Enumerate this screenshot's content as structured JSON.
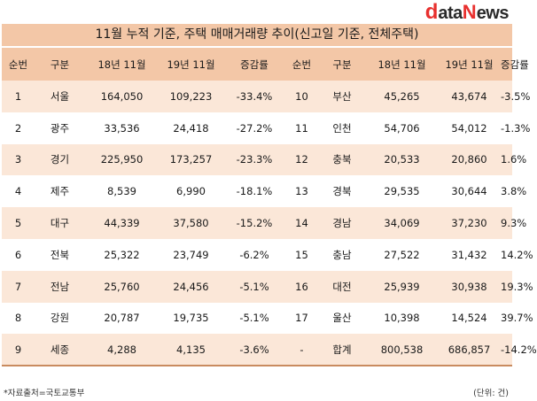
{
  "logo": {
    "d": "d",
    "ata": "ata",
    "n": "N",
    "ews": "ews"
  },
  "title": "11월 누적 기준, 주택 매매거래량 추이(신고일 기준, 전체주택)",
  "headers": [
    "순번",
    "구분",
    "18년 11월",
    "19년 11월",
    "증감률",
    "순번",
    "구분",
    "18년 11월",
    "19년 11월",
    "증감률"
  ],
  "rows": [
    [
      "1",
      "서울",
      "164,050",
      "109,223",
      "-33.4%",
      "10",
      "부산",
      "45,265",
      "43,674",
      "-3.5%"
    ],
    [
      "2",
      "광주",
      "33,536",
      "24,418",
      "-27.2%",
      "11",
      "인천",
      "54,706",
      "54,012",
      "-1.3%"
    ],
    [
      "3",
      "경기",
      "225,950",
      "173,257",
      "-23.3%",
      "12",
      "충북",
      "20,533",
      "20,860",
      "1.6%"
    ],
    [
      "4",
      "제주",
      "8,539",
      "6,990",
      "-18.1%",
      "13",
      "경북",
      "29,535",
      "30,644",
      "3.8%"
    ],
    [
      "5",
      "대구",
      "44,339",
      "37,580",
      "-15.2%",
      "14",
      "경남",
      "34,069",
      "37,230",
      "9.3%"
    ],
    [
      "6",
      "전북",
      "25,322",
      "23,749",
      "-6.2%",
      "15",
      "충남",
      "27,522",
      "31,432",
      "14.2%"
    ],
    [
      "7",
      "전남",
      "25,760",
      "24,456",
      "-5.1%",
      "16",
      "대전",
      "25,939",
      "30,938",
      "19.3%"
    ],
    [
      "8",
      "강원",
      "20,787",
      "19,735",
      "-5.1%",
      "17",
      "울산",
      "10,398",
      "14,524",
      "39.7%"
    ],
    [
      "9",
      "세종",
      "4,288",
      "4,135",
      "-3.6%",
      "-",
      "합계",
      "800,538",
      "686,857",
      "-14.2%"
    ]
  ],
  "footer": {
    "source": "*자료출처=국토교통부",
    "unit": "(단위: 건)"
  }
}
